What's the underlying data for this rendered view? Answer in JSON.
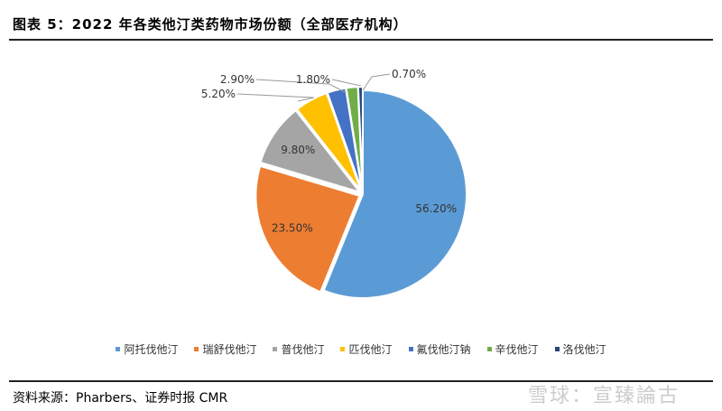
{
  "title": "图表 5：2022 年各类他汀类药物市场份额（全部医疗机构）",
  "source": "资料来源：Pharbers、证券时报 CMR",
  "watermark": "雪球：宣臻論古",
  "chart_data": {
    "type": "pie",
    "categories": [
      "阿托伐他汀",
      "瑞舒伐他汀",
      "普伐他汀",
      "匹伐他汀",
      "氟伐他汀钠",
      "辛伐他汀",
      "洛伐他汀"
    ],
    "values": [
      56.2,
      23.5,
      9.8,
      5.2,
      2.9,
      1.8,
      0.7
    ],
    "labels": [
      "56.20%",
      "23.50%",
      "9.80%",
      "5.20%",
      "2.90%",
      "1.80%",
      "0.70%"
    ],
    "colors": [
      "#5B9BD5",
      "#ED7D31",
      "#A5A5A5",
      "#FFC000",
      "#4472C4",
      "#70AD47",
      "#264478"
    ],
    "legend": "bottom",
    "start": "top-clockwise"
  }
}
